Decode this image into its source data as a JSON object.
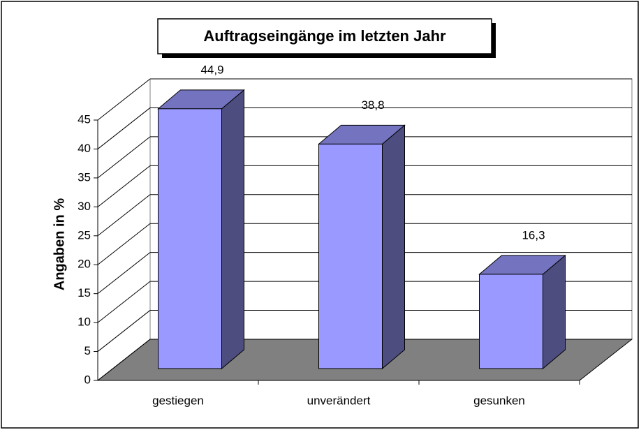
{
  "chart_data": {
    "type": "bar3d",
    "title": "Auftragseingänge im letzten Jahr",
    "ylabel": "Angaben in %",
    "categories": [
      "gestiegen",
      "unverändert",
      "gesunken"
    ],
    "values": [
      44.9,
      38.8,
      16.3
    ],
    "value_labels": [
      "44,9",
      "38,8",
      "16,3"
    ],
    "color": "#9999ff",
    "ylim": [
      0,
      45
    ],
    "yticks": [
      0,
      5,
      10,
      15,
      20,
      25,
      30,
      35,
      40,
      45
    ],
    "grid": true
  }
}
